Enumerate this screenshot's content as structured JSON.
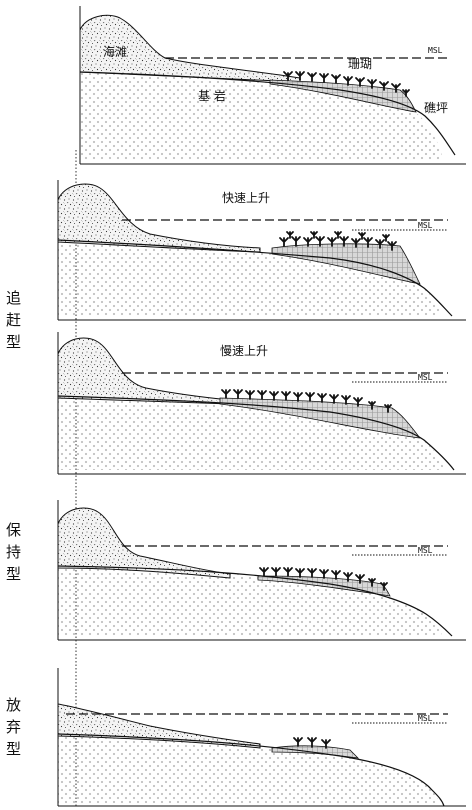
{
  "labels": {
    "beach": "海滩",
    "coral": "珊瑚",
    "bedrock": "基 岩",
    "reef_flat": "礁坪",
    "msl": "MSL"
  },
  "panels": [
    {
      "rise": ""
    },
    {
      "rise": "快速上升"
    },
    {
      "rise": "慢速上升"
    },
    {
      "rise": ""
    },
    {
      "rise": ""
    }
  ],
  "types": {
    "catch_up": [
      "追",
      "赶",
      "型"
    ],
    "keep_up": [
      "保",
      "持",
      "型"
    ],
    "give_up": [
      "放",
      "弃",
      "型"
    ]
  },
  "colors": {
    "line": "#111111",
    "bedrock_dots": "#bdbdbd",
    "coral_fill": "#cfcfcf"
  }
}
